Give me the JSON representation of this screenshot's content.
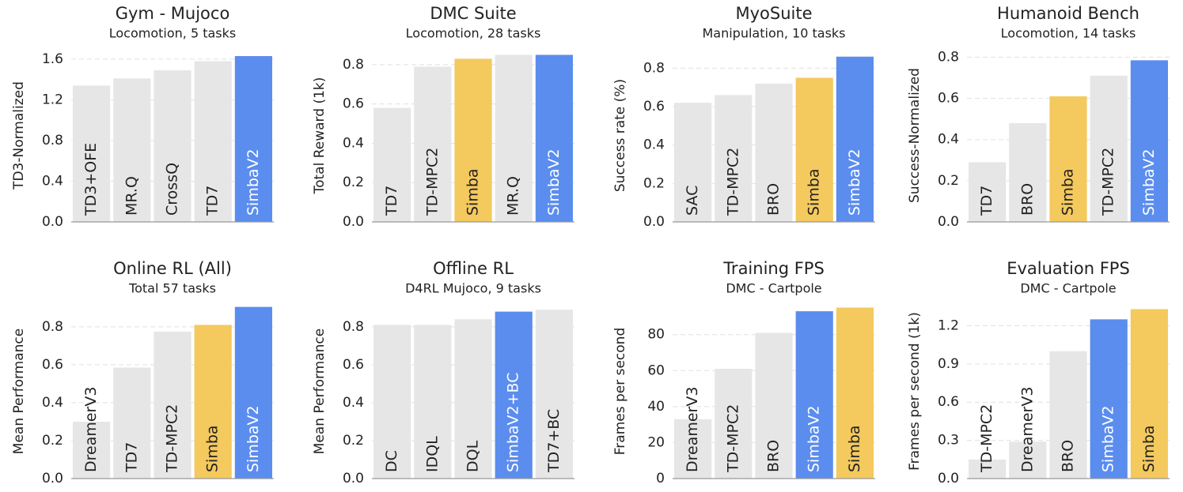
{
  "chart_data": [
    {
      "type": "bar",
      "title": "Gym - Mujoco",
      "subtitle": "Locomotion, 5 tasks",
      "ylabel": "TD3-Normalized",
      "categories": [
        "TD3+OFE",
        "MR.Q",
        "CrossQ",
        "TD7",
        "SimbaV2"
      ],
      "values": [
        1.34,
        1.41,
        1.49,
        1.58,
        1.63
      ],
      "colors": [
        "#e6e6e6",
        "#e6e6e6",
        "#e6e6e6",
        "#e6e6e6",
        "#5b8def"
      ],
      "ylim": [
        0,
        1.7
      ],
      "yticks": [
        {
          "value": 0,
          "label": "0.0"
        },
        0.4,
        0.8,
        1.2,
        1.6
      ],
      "grid": true
    },
    {
      "type": "bar",
      "title": "DMC Suite",
      "subtitle": "Locomotion, 28 tasks",
      "ylabel": "Total Reward (1k)",
      "categories": [
        "TD7",
        "TD-MPC2",
        "Simba",
        "MR.Q",
        "SimbaV2"
      ],
      "values": [
        0.58,
        0.79,
        0.83,
        0.85,
        0.85
      ],
      "colors": [
        "#e6e6e6",
        "#e6e6e6",
        "#f4c95d",
        "#e6e6e6",
        "#5b8def"
      ],
      "ylim": [
        0,
        0.88
      ],
      "yticks": [
        {
          "value": 0,
          "label": "0.0"
        },
        0.2,
        0.4,
        0.6,
        0.8
      ],
      "grid": true
    },
    {
      "type": "bar",
      "title": "MyoSuite",
      "subtitle": "Manipulation, 10 tasks",
      "ylabel": "Success rate (%)",
      "categories": [
        "SAC",
        "TD-MPC2",
        "BRO",
        "Simba",
        "SimbaV2"
      ],
      "values": [
        0.62,
        0.66,
        0.72,
        0.75,
        0.86
      ],
      "colors": [
        "#e6e6e6",
        "#e6e6e6",
        "#e6e6e6",
        "#f4c95d",
        "#5b8def"
      ],
      "ylim": [
        0,
        0.9
      ],
      "yticks": [
        {
          "value": 0,
          "label": "0.0"
        },
        0.2,
        0.4,
        0.6,
        0.8
      ],
      "grid": true
    },
    {
      "type": "bar",
      "title": "Humanoid Bench",
      "subtitle": "Locomotion, 14 tasks",
      "ylabel": "Success-Normalized",
      "categories": [
        "TD7",
        "BRO",
        "Simba",
        "TD-MPC2",
        "SimbaV2"
      ],
      "values": [
        0.29,
        0.48,
        0.61,
        0.71,
        0.785
      ],
      "colors": [
        "#e6e6e6",
        "#e6e6e6",
        "#f4c95d",
        "#e6e6e6",
        "#5b8def"
      ],
      "ylim": [
        0,
        0.84
      ],
      "yticks": [
        {
          "value": 0,
          "label": "0.0"
        },
        0.2,
        0.4,
        0.6,
        0.8
      ],
      "grid": true
    },
    {
      "type": "bar",
      "title": "Online RL (All)",
      "subtitle": "Total 57 tasks",
      "ylabel": "Mean Performance",
      "categories": [
        "DreamerV3",
        "TD7",
        "TD-MPC2",
        "Simba",
        "SimbaV2"
      ],
      "values": [
        0.3,
        0.585,
        0.775,
        0.81,
        0.905
      ],
      "colors": [
        "#e6e6e6",
        "#e6e6e6",
        "#e6e6e6",
        "#f4c95d",
        "#5b8def"
      ],
      "ylim": [
        0,
        0.92
      ],
      "yticks": [
        {
          "value": 0,
          "label": "0.0"
        },
        0.2,
        0.4,
        0.6,
        0.8
      ],
      "grid": true
    },
    {
      "type": "bar",
      "title": "Offline RL",
      "subtitle": "D4RL Mujoco, 9 tasks",
      "ylabel": "Mean Performance",
      "categories": [
        "DC",
        "IDQL",
        "DQL",
        "SimbaV2+BC",
        "TD7+BC"
      ],
      "values": [
        0.81,
        0.81,
        0.84,
        0.88,
        0.89
      ],
      "colors": [
        "#e6e6e6",
        "#e6e6e6",
        "#e6e6e6",
        "#5b8def",
        "#e6e6e6"
      ],
      "ylim": [
        0,
        0.92
      ],
      "yticks": [
        {
          "value": 0,
          "label": "0.0"
        },
        0.2,
        0.4,
        0.6,
        0.8
      ],
      "grid": true
    },
    {
      "type": "bar",
      "title": "Training FPS",
      "subtitle": "DMC - Cartpole",
      "ylabel": "Frames per second",
      "categories": [
        "DreamerV3",
        "TD-MPC2",
        "BRO",
        "SimbaV2",
        "Simba"
      ],
      "values": [
        33,
        61,
        81,
        93,
        95
      ],
      "colors": [
        "#e6e6e6",
        "#e6e6e6",
        "#e6e6e6",
        "#5b8def",
        "#f4c95d"
      ],
      "ylim": [
        0,
        97
      ],
      "yticks": [
        0,
        20,
        40,
        60,
        80
      ],
      "grid": true
    },
    {
      "type": "bar",
      "title": "Evaluation FPS",
      "subtitle": "DMC - Cartpole",
      "ylabel": "Frames per second (1k)",
      "categories": [
        "TD-MPC2",
        "DreamerV3",
        "BRO",
        "SimbaV2",
        "Simba"
      ],
      "values": [
        0.15,
        0.29,
        1.0,
        1.25,
        1.33
      ],
      "colors": [
        "#e6e6e6",
        "#e6e6e6",
        "#e6e6e6",
        "#5b8def",
        "#f4c95d"
      ],
      "ylim": [
        0,
        1.37
      ],
      "yticks": [
        {
          "value": 0,
          "label": "0.0"
        },
        0.3,
        0.6,
        0.9,
        1.2
      ],
      "grid": true
    }
  ]
}
